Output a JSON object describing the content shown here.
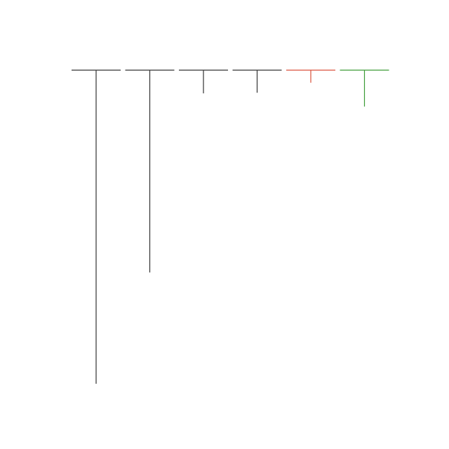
{
  "chart_data": {
    "type": "bar",
    "title": "",
    "xlabel": "",
    "ylabel": "",
    "orientation": "downward-from-baseline",
    "axes_visible": false,
    "grid": false,
    "legend": "none",
    "ylim": [
      0,
      100
    ],
    "values": [
      100,
      64.5,
      7.4,
      7.2,
      4.0,
      11.6
    ],
    "colors": [
      "#333333",
      "#333333",
      "#333333",
      "#333333",
      "#d94f3a",
      "#3a9a35"
    ]
  }
}
